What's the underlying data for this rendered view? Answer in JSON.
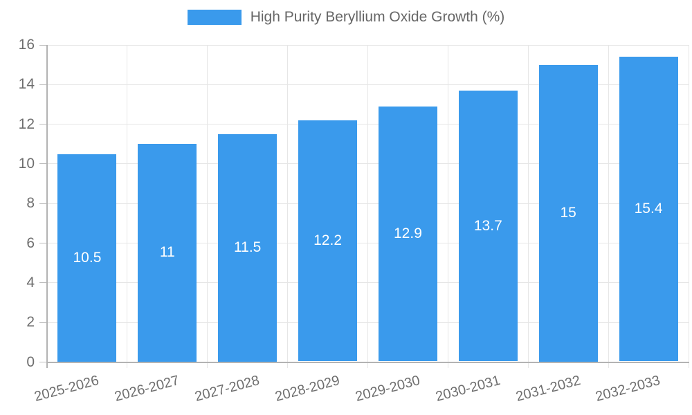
{
  "chart_data": {
    "type": "bar",
    "title": "High Purity Beryllium Oxide Growth (%)",
    "categories": [
      "2025-2026",
      "2026-2027",
      "2027-2028",
      "2028-2029",
      "2029-2030",
      "2030-2031",
      "2031-2032",
      "2032-2033"
    ],
    "values": [
      10.5,
      11,
      11.5,
      12.2,
      12.9,
      13.7,
      15,
      15.4
    ],
    "value_labels": [
      "10.5",
      "11",
      "11.5",
      "12.2",
      "12.9",
      "13.7",
      "15",
      "15.4"
    ],
    "xlabel": "",
    "ylabel": "",
    "ylim": [
      0,
      16
    ],
    "ytick_step": 2,
    "ytick_labels": [
      "0",
      "2",
      "4",
      "6",
      "8",
      "10",
      "12",
      "14",
      "16"
    ],
    "grid": true,
    "legend_position": "top",
    "x_label_rotation_deg": -15,
    "colors": {
      "bar": "#3a9aec",
      "bar_label": "#ffffff",
      "axis_text": "#6e6e6e",
      "legend_text": "#666666",
      "grid_line": "#e6e6e6",
      "tick_mark": "#bdbdbd",
      "axis_line": "#b3b3b3",
      "background": "#ffffff"
    }
  }
}
